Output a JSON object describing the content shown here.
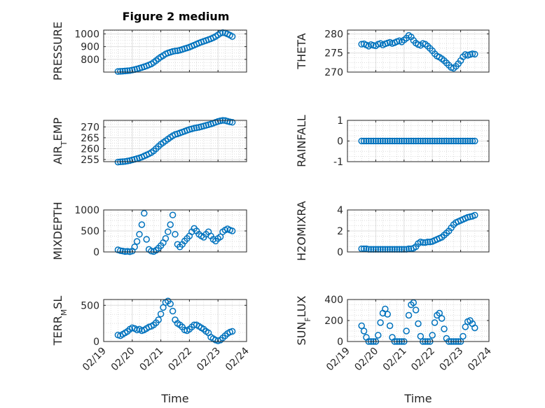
{
  "figure": {
    "title": "Figure 2 medium",
    "marker_color": "#0072bd",
    "grid": true,
    "minor_grid": true,
    "x_tick_labels": [
      "02/19",
      "02/20",
      "02/21",
      "02/22",
      "02/23",
      "02/24"
    ],
    "xlabel": "Time"
  },
  "chart_data": [
    {
      "type": "scatter",
      "ylabel": "PRESSURE",
      "ylim": [
        700,
        1030
      ],
      "yticks": [
        800,
        900,
        1000
      ],
      "xlim": [
        "02/19",
        "02/24"
      ],
      "x": [
        "02/19 12:00",
        "02/19 14:00",
        "02/19 16:00",
        "02/19 18:00",
        "02/19 20:00",
        "02/19 22:00",
        "02/20 00:00",
        "02/20 02:00",
        "02/20 04:00",
        "02/20 06:00",
        "02/20 08:00",
        "02/20 10:00",
        "02/20 12:00",
        "02/20 14:00",
        "02/20 16:00",
        "02/20 18:00",
        "02/20 20:00",
        "02/20 22:00",
        "02/21 00:00",
        "02/21 02:00",
        "02/21 04:00",
        "02/21 06:00",
        "02/21 08:00",
        "02/21 10:00",
        "02/21 12:00",
        "02/21 14:00",
        "02/21 16:00",
        "02/21 18:00",
        "02/21 20:00",
        "02/21 22:00",
        "02/22 00:00",
        "02/22 02:00",
        "02/22 04:00",
        "02/22 06:00",
        "02/22 08:00",
        "02/22 10:00",
        "02/22 12:00",
        "02/22 14:00",
        "02/22 16:00",
        "02/22 18:00",
        "02/22 20:00",
        "02/22 22:00",
        "02/23 00:00",
        "02/23 02:00",
        "02/23 04:00",
        "02/23 06:00",
        "02/23 08:00",
        "02/23 10:00",
        "02/23 12:00"
      ],
      "y": [
        705,
        706,
        707,
        709,
        710,
        712,
        716,
        720,
        725,
        730,
        736,
        742,
        748,
        756,
        764,
        776,
        790,
        805,
        818,
        830,
        842,
        850,
        856,
        862,
        866,
        868,
        872,
        878,
        884,
        890,
        896,
        904,
        912,
        920,
        928,
        935,
        942,
        948,
        955,
        962,
        970,
        980,
        992,
        1005,
        1010,
        1008,
        1000,
        990,
        980
      ]
    },
    {
      "type": "scatter",
      "ylabel": "THETA",
      "ylim": [
        270,
        281
      ],
      "yticks": [
        270,
        275,
        280
      ],
      "xlim": [
        "02/19",
        "02/24"
      ],
      "x": [
        "02/19 12:00",
        "02/19 14:00",
        "02/19 16:00",
        "02/19 18:00",
        "02/19 20:00",
        "02/19 22:00",
        "02/20 00:00",
        "02/20 02:00",
        "02/20 04:00",
        "02/20 06:00",
        "02/20 08:00",
        "02/20 10:00",
        "02/20 12:00",
        "02/20 14:00",
        "02/20 16:00",
        "02/20 18:00",
        "02/20 20:00",
        "02/20 22:00",
        "02/21 00:00",
        "02/21 02:00",
        "02/21 04:00",
        "02/21 06:00",
        "02/21 08:00",
        "02/21 10:00",
        "02/21 12:00",
        "02/21 14:00",
        "02/21 16:00",
        "02/21 18:00",
        "02/21 20:00",
        "02/21 22:00",
        "02/22 00:00",
        "02/22 02:00",
        "02/22 04:00",
        "02/22 06:00",
        "02/22 08:00",
        "02/22 10:00",
        "02/22 12:00",
        "02/22 14:00",
        "02/22 16:00",
        "02/22 18:00",
        "02/22 20:00",
        "02/22 22:00",
        "02/23 00:00",
        "02/23 02:00",
        "02/23 04:00",
        "02/23 06:00",
        "02/23 08:00",
        "02/23 10:00",
        "02/23 12:00"
      ],
      "y": [
        277.3,
        277.4,
        277.1,
        276.8,
        277.2,
        277.0,
        276.9,
        277.3,
        277.5,
        277.1,
        277.4,
        277.6,
        277.8,
        277.5,
        277.7,
        278.0,
        278.2,
        277.9,
        278.4,
        278.9,
        279.6,
        279.2,
        278.3,
        277.6,
        277.2,
        277.0,
        277.5,
        277.3,
        276.8,
        276.2,
        275.6,
        274.8,
        274.2,
        273.9,
        273.5,
        273.0,
        272.4,
        271.8,
        271.2,
        271.0,
        271.5,
        272.2,
        273.0,
        274.0,
        274.6,
        274.4,
        274.6,
        274.8,
        274.7
      ]
    },
    {
      "type": "scatter",
      "ylabel": "AIR_TEMP",
      "ylim": [
        254,
        273
      ],
      "yticks": [
        255,
        260,
        265,
        270
      ],
      "xlim": [
        "02/19",
        "02/24"
      ],
      "x": [
        "02/19 12:00",
        "02/19 14:00",
        "02/19 16:00",
        "02/19 18:00",
        "02/19 20:00",
        "02/19 22:00",
        "02/20 00:00",
        "02/20 02:00",
        "02/20 04:00",
        "02/20 06:00",
        "02/20 08:00",
        "02/20 10:00",
        "02/20 12:00",
        "02/20 14:00",
        "02/20 16:00",
        "02/20 18:00",
        "02/20 20:00",
        "02/20 22:00",
        "02/21 00:00",
        "02/21 02:00",
        "02/21 04:00",
        "02/21 06:00",
        "02/21 08:00",
        "02/21 10:00",
        "02/21 12:00",
        "02/21 14:00",
        "02/21 16:00",
        "02/21 18:00",
        "02/21 20:00",
        "02/21 22:00",
        "02/22 00:00",
        "02/22 02:00",
        "02/22 04:00",
        "02/22 06:00",
        "02/22 08:00",
        "02/22 10:00",
        "02/22 12:00",
        "02/22 14:00",
        "02/22 16:00",
        "02/22 18:00",
        "02/22 20:00",
        "02/22 22:00",
        "02/23 00:00",
        "02/23 02:00",
        "02/23 04:00",
        "02/23 06:00",
        "02/23 08:00",
        "02/23 10:00",
        "02/23 12:00"
      ],
      "y": [
        253.8,
        253.9,
        254.0,
        254.1,
        254.3,
        254.5,
        254.8,
        255.1,
        255.4,
        255.7,
        256.1,
        256.6,
        257.1,
        257.6,
        258.2,
        259.0,
        260.0,
        261.0,
        262.0,
        262.8,
        263.6,
        264.4,
        265.2,
        265.9,
        266.5,
        266.8,
        267.2,
        267.6,
        268.0,
        268.4,
        268.8,
        269.1,
        269.4,
        269.6,
        269.8,
        270.1,
        270.4,
        270.7,
        271.0,
        271.3,
        271.7,
        272.1,
        272.5,
        272.8,
        273.0,
        272.9,
        272.6,
        272.3,
        272.1
      ]
    },
    {
      "type": "scatter",
      "ylabel": "RAINFALL",
      "ylim": [
        -1,
        1
      ],
      "yticks": [
        -1,
        0,
        1
      ],
      "xlim": [
        "02/19",
        "02/24"
      ],
      "x": [
        "02/19 12:00",
        "02/19 14:00",
        "02/19 16:00",
        "02/19 18:00",
        "02/19 20:00",
        "02/19 22:00",
        "02/20 00:00",
        "02/20 02:00",
        "02/20 04:00",
        "02/20 06:00",
        "02/20 08:00",
        "02/20 10:00",
        "02/20 12:00",
        "02/20 14:00",
        "02/20 16:00",
        "02/20 18:00",
        "02/20 20:00",
        "02/20 22:00",
        "02/21 00:00",
        "02/21 02:00",
        "02/21 04:00",
        "02/21 06:00",
        "02/21 08:00",
        "02/21 10:00",
        "02/21 12:00",
        "02/21 14:00",
        "02/21 16:00",
        "02/21 18:00",
        "02/21 20:00",
        "02/21 22:00",
        "02/22 00:00",
        "02/22 02:00",
        "02/22 04:00",
        "02/22 06:00",
        "02/22 08:00",
        "02/22 10:00",
        "02/22 12:00",
        "02/22 14:00",
        "02/22 16:00",
        "02/22 18:00",
        "02/22 20:00",
        "02/22 22:00",
        "02/23 00:00",
        "02/23 02:00",
        "02/23 04:00",
        "02/23 06:00",
        "02/23 08:00",
        "02/23 10:00",
        "02/23 12:00"
      ],
      "y": [
        0,
        0,
        0,
        0,
        0,
        0,
        0,
        0,
        0,
        0,
        0,
        0,
        0,
        0,
        0,
        0,
        0,
        0,
        0,
        0,
        0,
        0,
        0,
        0,
        0,
        0,
        0,
        0,
        0,
        0,
        0,
        0,
        0,
        0,
        0,
        0,
        0,
        0,
        0,
        0,
        0,
        0,
        0,
        0,
        0,
        0,
        0,
        0,
        0
      ]
    },
    {
      "type": "scatter",
      "ylabel": "MIXDEPTH",
      "ylim": [
        0,
        1000
      ],
      "yticks": [
        0,
        500,
        1000
      ],
      "xlim": [
        "02/19",
        "02/24"
      ],
      "x": [
        "02/19 12:00",
        "02/19 14:00",
        "02/19 16:00",
        "02/19 18:00",
        "02/19 20:00",
        "02/19 22:00",
        "02/20 00:00",
        "02/20 02:00",
        "02/20 04:00",
        "02/20 06:00",
        "02/20 08:00",
        "02/20 10:00",
        "02/20 12:00",
        "02/20 14:00",
        "02/20 16:00",
        "02/20 18:00",
        "02/20 20:00",
        "02/20 22:00",
        "02/21 00:00",
        "02/21 02:00",
        "02/21 04:00",
        "02/21 06:00",
        "02/21 08:00",
        "02/21 10:00",
        "02/21 12:00",
        "02/21 14:00",
        "02/21 16:00",
        "02/21 18:00",
        "02/21 20:00",
        "02/21 22:00",
        "02/22 00:00",
        "02/22 02:00",
        "02/22 04:00",
        "02/22 06:00",
        "02/22 08:00",
        "02/22 10:00",
        "02/22 12:00",
        "02/22 14:00",
        "02/22 16:00",
        "02/22 18:00",
        "02/22 20:00",
        "02/22 22:00",
        "02/23 00:00",
        "02/23 02:00",
        "02/23 04:00",
        "02/23 06:00",
        "02/23 08:00",
        "02/23 10:00",
        "02/23 12:00"
      ],
      "y": [
        50,
        30,
        20,
        10,
        15,
        5,
        20,
        120,
        250,
        420,
        650,
        920,
        300,
        60,
        20,
        10,
        40,
        90,
        150,
        220,
        320,
        480,
        650,
        880,
        420,
        180,
        120,
        180,
        260,
        320,
        380,
        480,
        560,
        500,
        420,
        380,
        350,
        420,
        480,
        380,
        300,
        260,
        320,
        360,
        480,
        520,
        550,
        520,
        500
      ]
    },
    {
      "type": "scatter",
      "ylabel": "H2OMIXRA",
      "ylim": [
        0,
        4
      ],
      "yticks": [
        0,
        2,
        4
      ],
      "xlim": [
        "02/19",
        "02/24"
      ],
      "x": [
        "02/19 12:00",
        "02/19 14:00",
        "02/19 16:00",
        "02/19 18:00",
        "02/19 20:00",
        "02/19 22:00",
        "02/20 00:00",
        "02/20 02:00",
        "02/20 04:00",
        "02/20 06:00",
        "02/20 08:00",
        "02/20 10:00",
        "02/20 12:00",
        "02/20 14:00",
        "02/20 16:00",
        "02/20 18:00",
        "02/20 20:00",
        "02/20 22:00",
        "02/21 00:00",
        "02/21 02:00",
        "02/21 04:00",
        "02/21 06:00",
        "02/21 08:00",
        "02/21 10:00",
        "02/21 12:00",
        "02/21 14:00",
        "02/21 16:00",
        "02/21 18:00",
        "02/21 20:00",
        "02/21 22:00",
        "02/22 00:00",
        "02/22 02:00",
        "02/22 04:00",
        "02/22 06:00",
        "02/22 08:00",
        "02/22 10:00",
        "02/22 12:00",
        "02/22 14:00",
        "02/22 16:00",
        "02/22 18:00",
        "02/22 20:00",
        "02/22 22:00",
        "02/23 00:00",
        "02/23 02:00",
        "02/23 04:00",
        "02/23 06:00",
        "02/23 08:00",
        "02/23 10:00",
        "02/23 12:00"
      ],
      "y": [
        0.3,
        0.3,
        0.3,
        0.25,
        0.25,
        0.25,
        0.25,
        0.25,
        0.25,
        0.25,
        0.25,
        0.25,
        0.25,
        0.25,
        0.25,
        0.25,
        0.25,
        0.25,
        0.25,
        0.25,
        0.3,
        0.3,
        0.35,
        0.5,
        0.8,
        0.95,
        0.9,
        0.9,
        0.95,
        0.95,
        1.0,
        1.1,
        1.2,
        1.3,
        1.4,
        1.6,
        1.8,
        2.0,
        2.3,
        2.6,
        2.8,
        2.9,
        3.0,
        3.1,
        3.2,
        3.3,
        3.35,
        3.4,
        3.5
      ]
    },
    {
      "type": "scatter",
      "ylabel": "TERR_MSL",
      "ylim": [
        0,
        580
      ],
      "yticks": [
        0,
        500
      ],
      "xlim": [
        "02/19",
        "02/24"
      ],
      "x": [
        "02/19 12:00",
        "02/19 14:00",
        "02/19 16:00",
        "02/19 18:00",
        "02/19 20:00",
        "02/19 22:00",
        "02/20 00:00",
        "02/20 02:00",
        "02/20 04:00",
        "02/20 06:00",
        "02/20 08:00",
        "02/20 10:00",
        "02/20 12:00",
        "02/20 14:00",
        "02/20 16:00",
        "02/20 18:00",
        "02/20 20:00",
        "02/20 22:00",
        "02/21 00:00",
        "02/21 02:00",
        "02/21 04:00",
        "02/21 06:00",
        "02/21 08:00",
        "02/21 10:00",
        "02/21 12:00",
        "02/21 14:00",
        "02/21 16:00",
        "02/21 18:00",
        "02/21 20:00",
        "02/21 22:00",
        "02/22 00:00",
        "02/22 02:00",
        "02/22 04:00",
        "02/22 06:00",
        "02/22 08:00",
        "02/22 10:00",
        "02/22 12:00",
        "02/22 14:00",
        "02/22 16:00",
        "02/22 18:00",
        "02/22 20:00",
        "02/22 22:00",
        "02/23 00:00",
        "02/23 02:00",
        "02/23 04:00",
        "02/23 06:00",
        "02/23 08:00",
        "02/23 10:00",
        "02/23 12:00"
      ],
      "y": [
        90,
        80,
        100,
        120,
        140,
        170,
        190,
        180,
        160,
        170,
        150,
        160,
        180,
        200,
        210,
        230,
        260,
        300,
        380,
        470,
        540,
        560,
        520,
        420,
        300,
        250,
        230,
        200,
        160,
        150,
        170,
        200,
        230,
        230,
        210,
        190,
        170,
        140,
        120,
        60,
        40,
        20,
        10,
        20,
        50,
        80,
        110,
        130,
        140
      ]
    },
    {
      "type": "scatter",
      "ylabel": "SUN_FLUX",
      "ylim": [
        0,
        400
      ],
      "yticks": [
        0,
        200,
        400
      ],
      "xlim": [
        "02/19",
        "02/24"
      ],
      "x": [
        "02/19 12:00",
        "02/19 14:00",
        "02/19 16:00",
        "02/19 18:00",
        "02/19 20:00",
        "02/19 22:00",
        "02/20 00:00",
        "02/20 02:00",
        "02/20 04:00",
        "02/20 06:00",
        "02/20 08:00",
        "02/20 10:00",
        "02/20 12:00",
        "02/20 14:00",
        "02/20 16:00",
        "02/20 18:00",
        "02/20 20:00",
        "02/20 22:00",
        "02/21 00:00",
        "02/21 02:00",
        "02/21 04:00",
        "02/21 06:00",
        "02/21 08:00",
        "02/21 10:00",
        "02/21 12:00",
        "02/21 14:00",
        "02/21 16:00",
        "02/21 18:00",
        "02/21 20:00",
        "02/21 22:00",
        "02/22 00:00",
        "02/22 02:00",
        "02/22 04:00",
        "02/22 06:00",
        "02/22 08:00",
        "02/22 10:00",
        "02/22 12:00",
        "02/22 14:00",
        "02/22 16:00",
        "02/22 18:00",
        "02/22 20:00",
        "02/22 22:00",
        "02/23 00:00",
        "02/23 02:00",
        "02/23 04:00",
        "02/23 06:00",
        "02/23 08:00",
        "02/23 10:00",
        "02/23 12:00"
      ],
      "y": [
        150,
        100,
        40,
        0,
        0,
        0,
        0,
        60,
        180,
        270,
        310,
        260,
        150,
        40,
        0,
        0,
        0,
        0,
        0,
        100,
        250,
        350,
        370,
        300,
        170,
        50,
        0,
        0,
        0,
        0,
        60,
        180,
        250,
        270,
        220,
        120,
        30,
        0,
        0,
        0,
        0,
        0,
        0,
        50,
        140,
        190,
        200,
        170,
        130
      ]
    }
  ]
}
